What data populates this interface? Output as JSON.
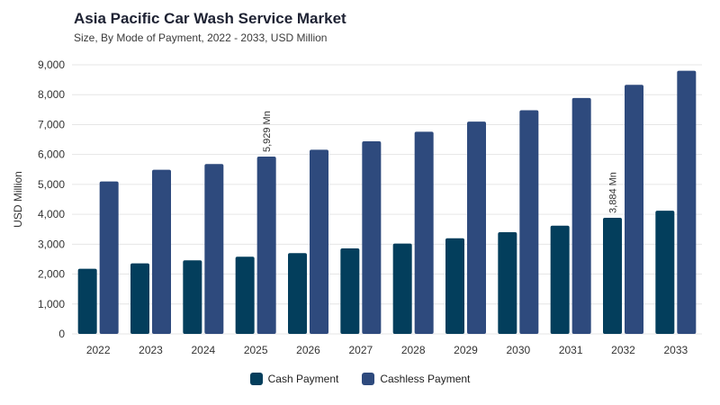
{
  "title": "Asia Pacific Car Wash Service Market",
  "subtitle": "Size, By Mode of Payment, 2022 - 2033, USD Million",
  "colors": {
    "cash": "#033e5c",
    "cashless": "#2e4a7d",
    "grid": "#e6e6e6"
  },
  "chart_data": {
    "type": "bar",
    "categories": [
      "2022",
      "2023",
      "2024",
      "2025",
      "2026",
      "2027",
      "2028",
      "2029",
      "2030",
      "2031",
      "2032",
      "2033"
    ],
    "series": [
      {
        "name": "Cash Payment",
        "values": [
          2180,
          2360,
          2460,
          2580,
          2700,
          2860,
          3020,
          3200,
          3400,
          3620,
          3884,
          4120
        ]
      },
      {
        "name": "Cashless Payment",
        "values": [
          5100,
          5490,
          5680,
          5929,
          6160,
          6440,
          6760,
          7100,
          7480,
          7890,
          8330,
          8800
        ]
      }
    ],
    "ylabel": "USD Million",
    "ylim": [
      0,
      9000
    ],
    "yticks": [
      "0",
      "1,000",
      "2,000",
      "3,000",
      "4,000",
      "5,000",
      "6,000",
      "7,000",
      "8,000",
      "9,000"
    ],
    "annotations": [
      {
        "series": 1,
        "index": 3,
        "text": "5,929 Mn"
      },
      {
        "series": 0,
        "index": 10,
        "text": "3,884 Mn"
      }
    ],
    "grid": true,
    "legend_position": "bottom"
  }
}
